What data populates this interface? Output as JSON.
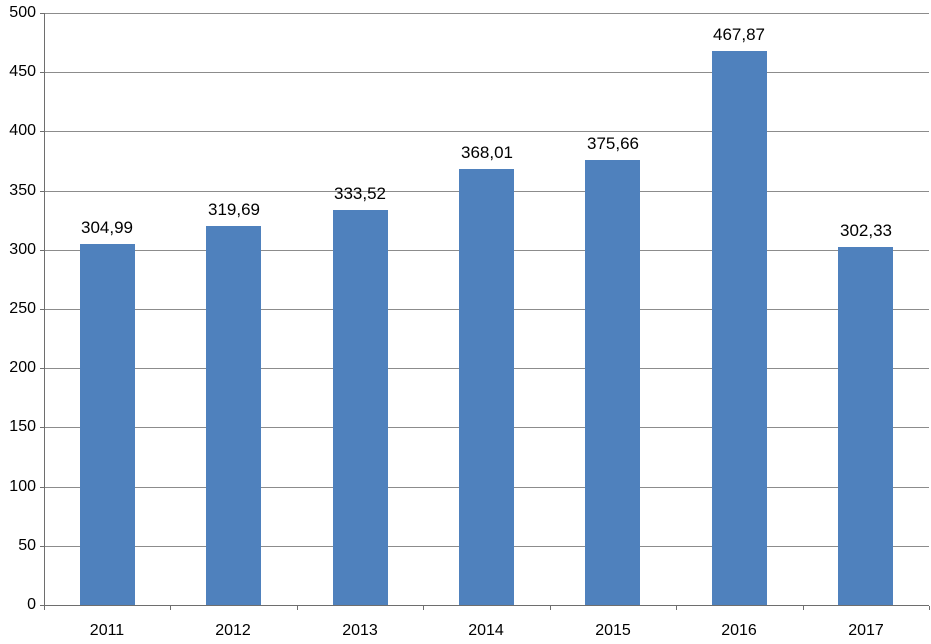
{
  "chart_data": {
    "type": "bar",
    "title": "",
    "xlabel": "",
    "ylabel": "",
    "categories": [
      "2011",
      "2012",
      "2013",
      "2014",
      "2015",
      "2016",
      "2017"
    ],
    "values": [
      304.99,
      319.69,
      333.52,
      368.01,
      375.66,
      467.87,
      302.33
    ],
    "value_labels": [
      "304,99",
      "319,69",
      "333,52",
      "368,01",
      "375,66",
      "467,87",
      "302,33"
    ],
    "ylim": [
      0,
      500
    ],
    "ytick_step": 50,
    "ytick_labels": [
      "0",
      "50",
      "100",
      "150",
      "200",
      "250",
      "300",
      "350",
      "400",
      "450",
      "500"
    ],
    "grid": true,
    "legend": false,
    "bar_color": "#4f81bd",
    "gridline_color": "#8c8c8c",
    "axis_color": "#6e6e6e",
    "text_color": "#000000",
    "background_color": "#ffffff"
  }
}
